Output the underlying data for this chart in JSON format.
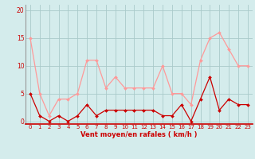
{
  "hours": [
    0,
    1,
    2,
    3,
    4,
    5,
    6,
    7,
    8,
    9,
    10,
    11,
    12,
    13,
    14,
    15,
    16,
    17,
    18,
    19,
    20,
    21,
    22,
    23
  ],
  "vent_moyen": [
    5,
    1,
    0,
    1,
    0,
    1,
    3,
    1,
    2,
    2,
    2,
    2,
    2,
    2,
    1,
    1,
    3,
    0,
    4,
    8,
    2,
    4,
    3,
    3
  ],
  "rafales": [
    15,
    5,
    1,
    4,
    4,
    5,
    11,
    11,
    6,
    8,
    6,
    6,
    6,
    6,
    10,
    5,
    5,
    3,
    11,
    15,
    16,
    13,
    10,
    10
  ],
  "line_dark": "#cc0000",
  "line_light": "#ff9999",
  "bg_color": "#d4ecec",
  "grid_color": "#aacaca",
  "xlabel": "Vent moyen/en rafales ( km/h )",
  "ylabel_ticks": [
    0,
    5,
    10,
    15,
    20
  ],
  "ylim": [
    -0.5,
    21
  ],
  "xlim": [
    -0.5,
    23.5
  ],
  "xlabel_fontsize": 6.0,
  "xtick_fontsize": 5.0,
  "ytick_fontsize": 5.5
}
